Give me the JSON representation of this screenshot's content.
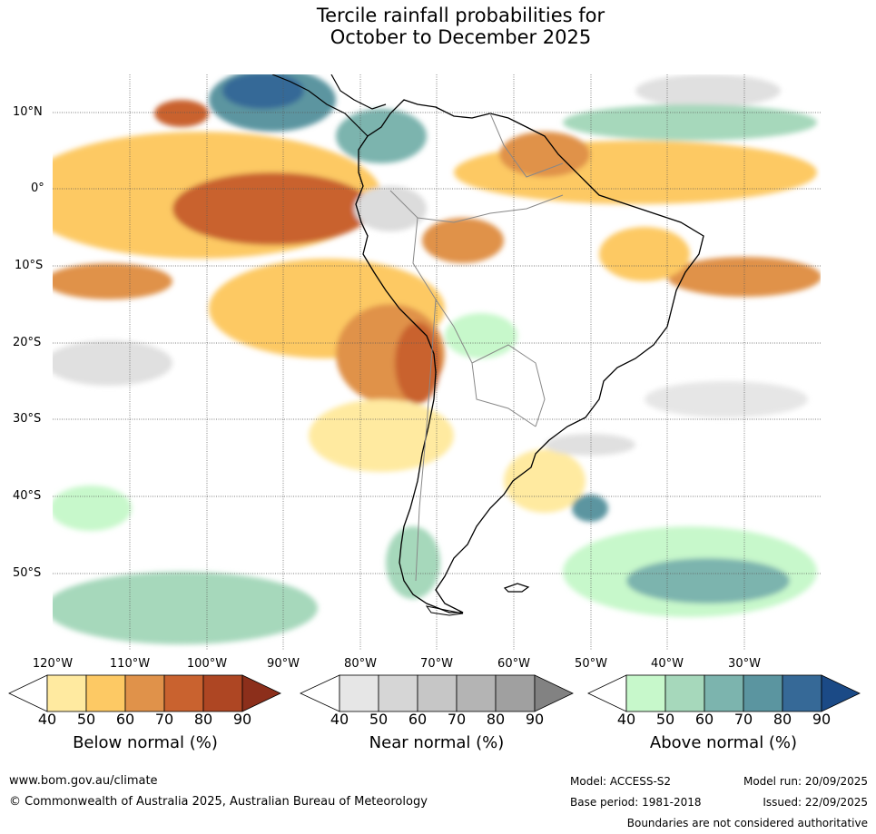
{
  "title": {
    "line1": "Tercile rainfall probabilities for",
    "line2": "October to December 2025"
  },
  "map": {
    "lat_labels": [
      "10°N",
      "0°",
      "10°S",
      "20°S",
      "30°S",
      "40°S",
      "50°S"
    ],
    "lon_labels": [
      "120°W",
      "110°W",
      "100°W",
      "90°W",
      "80°W",
      "70°W",
      "60°W",
      "50°W",
      "40°W",
      "30°W"
    ]
  },
  "colorbars": [
    {
      "title": "Below normal (%)",
      "ticks": [
        "40",
        "50",
        "60",
        "70",
        "80",
        "90"
      ],
      "colors": [
        "#ffeaa0",
        "#fdc964",
        "#e0924a",
        "#c9622f",
        "#ae4623",
        "#8c2f1b"
      ]
    },
    {
      "title": "Near normal (%)",
      "ticks": [
        "40",
        "50",
        "60",
        "70",
        "80",
        "90"
      ],
      "colors": [
        "#e6e6e6",
        "#d6d6d6",
        "#c6c6c6",
        "#b4b4b4",
        "#a0a0a0",
        "#828282"
      ]
    },
    {
      "title": "Above normal (%)",
      "ticks": [
        "40",
        "50",
        "60",
        "70",
        "80",
        "90"
      ],
      "colors": [
        "#c7f8cb",
        "#a6d8bb",
        "#7cb4ae",
        "#5b95a0",
        "#366997",
        "#1b4a86"
      ]
    }
  ],
  "footer": {
    "website": "www.bom.gov.au/climate",
    "copyright": "© Commonwealth of Australia 2025, Australian Bureau of Meteorology",
    "model": "Model: ACCESS-S2",
    "base_period": "Base period: 1981-2018",
    "model_run": "Model run: 20/09/2025",
    "issued": "Issued: 22/09/2025",
    "disclaimer": "Boundaries are not considered authoritative"
  }
}
